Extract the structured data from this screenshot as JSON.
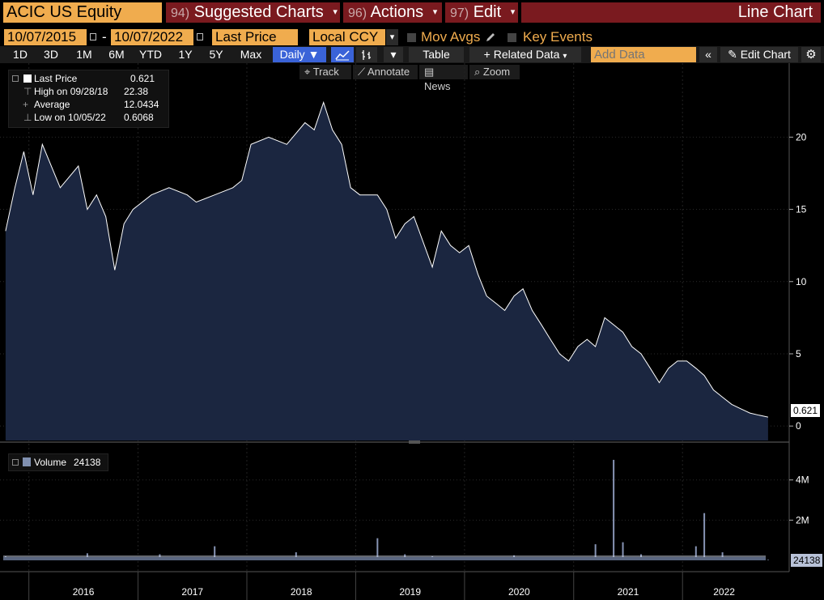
{
  "header": {
    "ticker": "ACIC US Equity",
    "menus": [
      {
        "num": "94)",
        "label": "Suggested Charts"
      },
      {
        "num": "96)",
        "label": "Actions"
      },
      {
        "num": "97)",
        "label": "Edit"
      }
    ],
    "chart_type_title": "Line Chart"
  },
  "controls": {
    "start_date": "10/07/2015",
    "end_date": "10/07/2022",
    "date_sep": "-",
    "field": "Last Price",
    "currency": "Local CCY",
    "mov_avgs": "Mov Avgs",
    "key_events": "Key Events"
  },
  "ranges": [
    "1D",
    "3D",
    "1M",
    "6M",
    "YTD",
    "1Y",
    "5Y",
    "Max"
  ],
  "periodicity": "Daily",
  "table_label": "Table",
  "related_data": "Related Data",
  "add_data_placeholder": "Add Data",
  "edit_chart": "Edit Chart",
  "tools": [
    "Track",
    "Annotate",
    "News",
    "Zoom"
  ],
  "legend": {
    "last_price_label": "Last Price",
    "last_price_value": "0.621",
    "high_label": "High on 09/28/18",
    "high_value": "22.38",
    "avg_label": "Average",
    "avg_value": "12.0434",
    "low_label": "Low on 10/05/22",
    "low_value": "0.6068"
  },
  "volume_legend": {
    "label": "Volume",
    "value": "24138"
  },
  "last_price_tag": "0.621",
  "last_volume_tag": "24138",
  "colors": {
    "accent": "#f0ac4e",
    "menu_red": "#7a1a1f",
    "area_fill": "#1b2640",
    "selected_blue": "#3a63d8"
  },
  "chart_data": [
    {
      "type": "area",
      "ylim": [
        -1,
        24
      ],
      "yticks": [
        "0",
        "5",
        "10",
        "15",
        "20"
      ],
      "x_labels": [
        "2016",
        "2017",
        "2018",
        "2019",
        "2020",
        "2021",
        "2022"
      ],
      "x": [
        "2015-10",
        "2015-11",
        "2015-12",
        "2016-01",
        "2016-02",
        "2016-04",
        "2016-06",
        "2016-07",
        "2016-08",
        "2016-09",
        "2016-10",
        "2016-11",
        "2016-12",
        "2017-02",
        "2017-04",
        "2017-06",
        "2017-07",
        "2017-09",
        "2017-11",
        "2017-12",
        "2018-01",
        "2018-03",
        "2018-05",
        "2018-07",
        "2018-08",
        "2018-09",
        "2018-10",
        "2018-11",
        "2018-12",
        "2019-01",
        "2019-03",
        "2019-04",
        "2019-05",
        "2019-06",
        "2019-07",
        "2019-09",
        "2019-10",
        "2019-11",
        "2019-12",
        "2020-01",
        "2020-02",
        "2020-03",
        "2020-04",
        "2020-05",
        "2020-06",
        "2020-07",
        "2020-08",
        "2020-09",
        "2020-10",
        "2020-11",
        "2020-12",
        "2021-01",
        "2021-02",
        "2021-03",
        "2021-04",
        "2021-06",
        "2021-07",
        "2021-08",
        "2021-09",
        "2021-10",
        "2021-11",
        "2021-12",
        "2022-01",
        "2022-02",
        "2022-03",
        "2022-04",
        "2022-05",
        "2022-06",
        "2022-07",
        "2022-08",
        "2022-09",
        "2022-10"
      ],
      "series": [
        {
          "values": [
            13.5,
            16.5,
            19.0,
            16.0,
            19.5,
            16.5,
            18.0,
            15.0,
            16.0,
            14.5,
            10.8,
            14.0,
            15.0,
            16.0,
            16.5,
            16.0,
            15.5,
            16.0,
            16.5,
            17.0,
            19.5,
            20.0,
            19.5,
            21.0,
            20.5,
            22.4,
            20.5,
            19.5,
            16.5,
            16.0,
            16.0,
            15.0,
            13.0,
            14.0,
            14.5,
            11.0,
            13.5,
            12.5,
            12.0,
            12.5,
            10.5,
            9.0,
            8.5,
            8.0,
            9.0,
            9.5,
            8.0,
            7.0,
            6.0,
            5.0,
            4.5,
            5.5,
            6.0,
            5.5,
            7.5,
            6.5,
            5.5,
            5.0,
            4.0,
            3.0,
            4.0,
            4.5,
            4.5,
            4.0,
            3.5,
            2.5,
            2.0,
            1.5,
            1.2,
            0.9,
            0.75,
            0.62
          ]
        }
      ]
    },
    {
      "type": "bar",
      "ylim": [
        0,
        5400000
      ],
      "yticks": [
        "2M",
        "4M"
      ],
      "x": [
        "2015-10",
        "2016-07",
        "2017-03",
        "2017-09",
        "2018-06",
        "2019-03",
        "2019-06",
        "2019-09",
        "2020-06",
        "2021-03",
        "2021-05",
        "2021-06",
        "2021-08",
        "2022-02",
        "2022-03",
        "2022-05",
        "2022-10"
      ],
      "series": [
        {
          "values": [
            200000,
            350000,
            300000,
            700000,
            400000,
            1100000,
            300000,
            200000,
            250000,
            800000,
            5000000,
            900000,
            300000,
            700000,
            2350000,
            400000,
            24138
          ]
        }
      ]
    }
  ]
}
